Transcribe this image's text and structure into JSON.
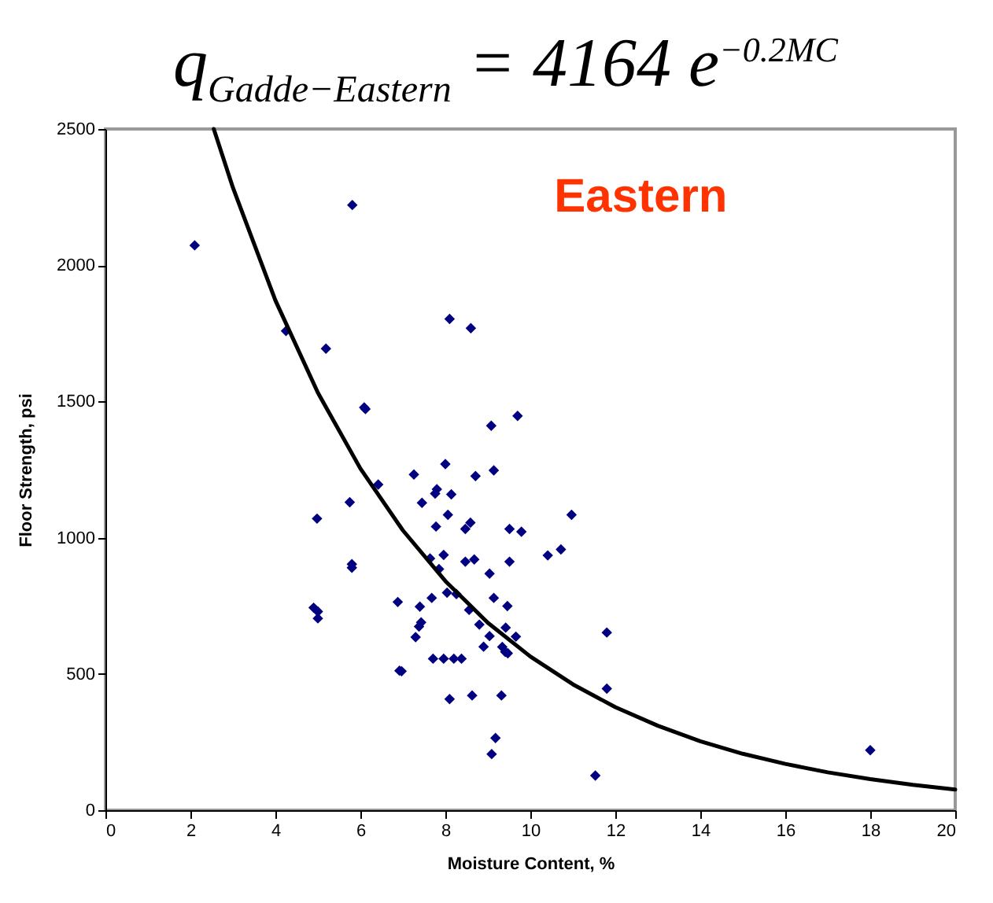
{
  "chart_data": {
    "type": "scatter",
    "title": "q$_{Gadde−Eastern}$ = 4164 e$^{−0.2MC}$",
    "xlabel": "Moisture Content, %",
    "ylabel": "Floor Strength, psi",
    "annotations": [
      "Eastern"
    ],
    "xlim": [
      0,
      20
    ],
    "ylim": [
      0,
      2500
    ],
    "xticks": [
      0,
      2,
      4,
      6,
      8,
      10,
      12,
      14,
      16,
      18,
      20
    ],
    "yticks": [
      0,
      500,
      1000,
      1500,
      2000,
      2500
    ],
    "grid": false,
    "series": [
      {
        "marker": "diamond",
        "color": "#000080",
        "x": [
          2.1,
          5.81,
          4.25,
          5.19,
          6.09,
          6.12,
          5.75,
          4.98,
          5.8,
          5.8,
          4.9,
          5.0,
          5.0,
          8.1,
          8.6,
          9.08,
          9.7,
          6.42,
          7.26,
          8.0,
          8.71,
          9.14,
          7.8,
          7.76,
          8.14,
          7.45,
          8.06,
          10.97,
          7.78,
          8.59,
          8.47,
          9.51,
          9.79,
          10.41,
          10.72,
          7.64,
          7.85,
          7.96,
          8.47,
          8.68,
          9.51,
          9.04,
          6.88,
          7.4,
          7.68,
          8.04,
          8.26,
          9.14,
          9.46,
          8.56,
          8.8,
          7.43,
          7.38,
          9.42,
          9.04,
          9.66,
          7.3,
          8.9,
          9.34,
          9.41,
          9.47,
          7.71,
          7.96,
          8.2,
          8.38,
          11.8,
          6.92,
          6.97,
          11.8,
          8.1,
          8.63,
          9.32,
          9.18,
          9.09,
          11.53,
          18.0
        ],
        "values": [
          2073,
          2221,
          1759,
          1694,
          1478,
          1472,
          1130,
          1070,
          903,
          890,
          743,
          729,
          704,
          1803,
          1769,
          1411,
          1447,
          1195,
          1232,
          1270,
          1226,
          1247,
          1178,
          1162,
          1159,
          1128,
          1084,
          1084,
          1041,
          1055,
          1032,
          1032,
          1022,
          935,
          957,
          924,
          885,
          937,
          912,
          920,
          912,
          868,
          764,
          747,
          779,
          798,
          793,
          779,
          749,
          735,
          681,
          689,
          674,
          670,
          639,
          637,
          635,
          600,
          599,
          581,
          576,
          556,
          556,
          556,
          556,
          652,
          512,
          510,
          446,
          408,
          421,
          421,
          265,
          206,
          127,
          220
        ]
      },
      {
        "type": "line",
        "color": "#000000",
        "x": [
          2.55,
          3,
          4,
          5,
          6,
          7,
          8,
          9,
          10,
          11,
          12,
          13,
          14,
          15,
          16,
          17,
          18,
          19,
          20
        ],
        "values": [
          2500,
          2285,
          1871,
          1532,
          1254,
          1027,
          841,
          688,
          564,
          462,
          378,
          310,
          253,
          207,
          170,
          139,
          114,
          93,
          76
        ]
      }
    ]
  }
}
